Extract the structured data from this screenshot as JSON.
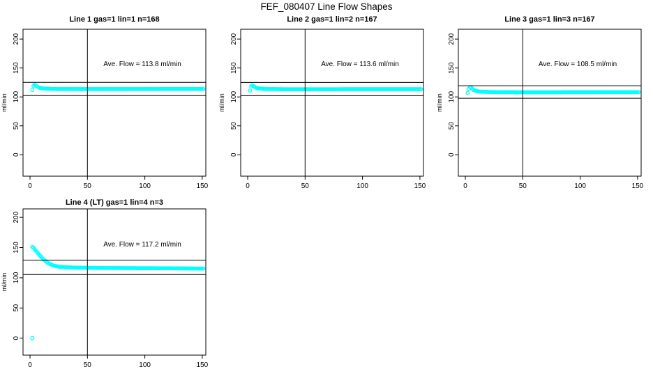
{
  "figure": {
    "title": "FEF_080407  Line Flow Shapes",
    "background": "#ffffff",
    "marker_color": "#00ffff",
    "axis_color": "#000000"
  },
  "chart_data": [
    {
      "type": "scatter",
      "title": "Line 1 gas=1 lin=1 n=168",
      "annotation": "Ave. Flow = 113.8 ml/min",
      "ave_flow_ml_min": 113.8,
      "n": 168,
      "ylabel": "ml/min",
      "xticks": [
        0,
        50,
        100,
        150
      ],
      "yticks": [
        0,
        50,
        100,
        150,
        200
      ],
      "xlim": [
        -6.1,
        153.1
      ],
      "ylim": [
        -37,
        217
      ],
      "grid": false,
      "vline_x": 50,
      "hlines": [
        102.4,
        125.2
      ],
      "x_start": 2,
      "x_end": 151,
      "x_step": 1,
      "profile": [
        [
          2,
          112
        ],
        [
          3,
          119
        ],
        [
          4,
          121
        ],
        [
          5,
          120
        ],
        [
          6,
          118
        ],
        [
          8,
          116
        ],
        [
          12,
          114.5
        ],
        [
          20,
          113.8
        ],
        [
          40,
          113.6
        ],
        [
          80,
          113.6
        ],
        [
          120,
          113.8
        ],
        [
          151,
          113.8
        ]
      ],
      "outliers": []
    },
    {
      "type": "scatter",
      "title": "Line 2 gas=1 lin=2 n=167",
      "annotation": "Ave. Flow = 113.6 ml/min",
      "ave_flow_ml_min": 113.6,
      "n": 167,
      "ylabel": "ml/min",
      "xticks": [
        0,
        50,
        100,
        150
      ],
      "yticks": [
        0,
        50,
        100,
        150,
        200
      ],
      "xlim": [
        -6.1,
        153.1
      ],
      "ylim": [
        -37,
        217
      ],
      "grid": false,
      "vline_x": 50,
      "hlines": [
        102.2,
        125.0
      ],
      "x_start": 2,
      "x_end": 151,
      "x_step": 1,
      "profile": [
        [
          2,
          111
        ],
        [
          3,
          118
        ],
        [
          4,
          120
        ],
        [
          5,
          119
        ],
        [
          7,
          116
        ],
        [
          10,
          114.5
        ],
        [
          15,
          113.8
        ],
        [
          30,
          113.4
        ],
        [
          60,
          113.3
        ],
        [
          100,
          113.5
        ],
        [
          151,
          113.5
        ]
      ],
      "outliers": []
    },
    {
      "type": "scatter",
      "title": "Line 3 gas=1 lin=3 n=167",
      "annotation": "Ave. Flow = 108.5 ml/min",
      "ave_flow_ml_min": 108.5,
      "n": 167,
      "ylabel": "ml/min",
      "xticks": [
        0,
        50,
        100,
        150
      ],
      "yticks": [
        0,
        50,
        100,
        150,
        200
      ],
      "xlim": [
        -6.1,
        153.1
      ],
      "ylim": [
        -37,
        217
      ],
      "grid": false,
      "vline_x": 50,
      "hlines": [
        97.7,
        119.4
      ],
      "x_start": 2,
      "x_end": 151,
      "x_step": 1,
      "profile": [
        [
          2,
          107
        ],
        [
          3,
          114
        ],
        [
          4,
          117
        ],
        [
          5,
          116
        ],
        [
          7,
          112
        ],
        [
          10,
          110
        ],
        [
          15,
          108.8
        ],
        [
          30,
          108.2
        ],
        [
          60,
          108.0
        ],
        [
          100,
          108.2
        ],
        [
          151,
          108.3
        ]
      ],
      "outliers": []
    },
    {
      "type": "scatter",
      "title": "Line 4 (LT) gas=1 lin=4 n=3",
      "annotation": "Ave. Flow = 117.2 ml/min",
      "ave_flow_ml_min": 117.2,
      "n": 3,
      "ylabel": "ml/min",
      "xticks": [
        0,
        50,
        100,
        150
      ],
      "yticks": [
        0,
        50,
        100,
        150,
        200
      ],
      "xlim": [
        -6.1,
        153.1
      ],
      "ylim": [
        -28,
        214
      ],
      "grid": false,
      "vline_x": 50,
      "hlines": [
        105.5,
        128.9
      ],
      "x_start": 2,
      "x_end": 151,
      "x_step": 1,
      "profile": [
        [
          2,
          151
        ],
        [
          3,
          150
        ],
        [
          5,
          145
        ],
        [
          8,
          138
        ],
        [
          12,
          130
        ],
        [
          16,
          124
        ],
        [
          20,
          120.5
        ],
        [
          25,
          118.3
        ],
        [
          30,
          117.5
        ],
        [
          40,
          116.8
        ],
        [
          60,
          116.3
        ],
        [
          90,
          116.0
        ],
        [
          120,
          115.8
        ],
        [
          151,
          115.2
        ]
      ],
      "outliers": [
        [
          2,
          0
        ]
      ]
    }
  ]
}
